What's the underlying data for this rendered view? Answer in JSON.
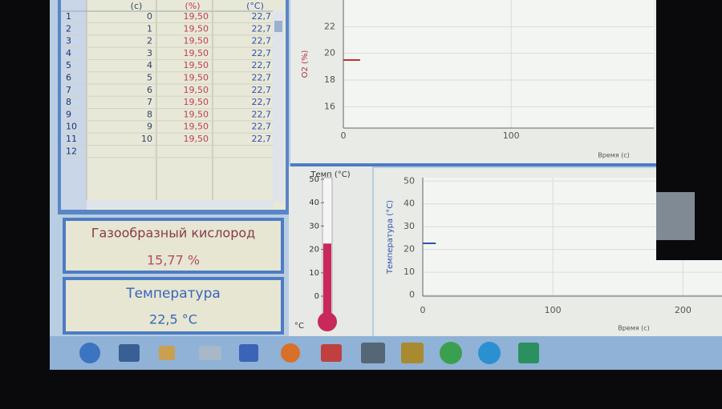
{
  "table": {
    "headers": [
      "(с)",
      "(%)",
      "(°C)"
    ],
    "row_numbers": [
      1,
      2,
      3,
      4,
      5,
      6,
      7,
      8,
      9,
      10,
      11,
      12
    ],
    "rows": [
      [
        0,
        "19,50",
        "22,7"
      ],
      [
        1,
        "19,50",
        "22,7"
      ],
      [
        2,
        "19,50",
        "22,7"
      ],
      [
        3,
        "19,50",
        "22,7"
      ],
      [
        4,
        "19,50",
        "22,7"
      ],
      [
        5,
        "19,50",
        "22,7"
      ],
      [
        6,
        "19,50",
        "22,7"
      ],
      [
        7,
        "19,50",
        "22,7"
      ],
      [
        8,
        "19,50",
        "22,7"
      ],
      [
        9,
        "19,50",
        "22,7"
      ],
      [
        10,
        "19,50",
        "22,7"
      ]
    ]
  },
  "oxygen_panel": {
    "title": "Газообразный кислород",
    "value": "15,77 %"
  },
  "temperature_panel": {
    "title": "Температура",
    "value": "22,5 °C"
  },
  "thermometer": {
    "title": "Темп (°C)",
    "unit": "°C",
    "lim": [
      0,
      50
    ],
    "ticks": [
      0,
      10,
      20,
      30,
      40,
      50
    ],
    "value": 22.5,
    "color": "#c8285a"
  },
  "charts": [
    {
      "type": "line",
      "y_label": "O2 (%)",
      "x_label": "Время (с)",
      "xlim": [
        0,
        185
      ],
      "xticks": [
        0,
        100
      ],
      "ylim": [
        14.4,
        24
      ],
      "yticks": [
        16,
        18,
        20,
        22
      ],
      "series": [
        {
          "color": "#c03030",
          "x": [
            0,
            1,
            2,
            3,
            4,
            5,
            6,
            7,
            8,
            9,
            10
          ],
          "values": [
            19.5,
            19.5,
            19.5,
            19.5,
            19.5,
            19.5,
            19.5,
            19.5,
            19.5,
            19.5,
            19.5
          ]
        }
      ]
    },
    {
      "type": "line",
      "y_label": "Температура (°C)",
      "x_label": "Время (с)",
      "xlim": [
        0,
        230
      ],
      "xticks": [
        0,
        100,
        200
      ],
      "ylim": [
        -0.5,
        51.5
      ],
      "yticks": [
        0,
        10,
        20,
        30,
        40,
        50
      ],
      "series": [
        {
          "color": "#3050b0",
          "x": [
            0,
            1,
            2,
            3,
            4,
            5,
            6,
            7,
            8,
            9,
            10
          ],
          "values": [
            22.7,
            22.7,
            22.7,
            22.7,
            22.7,
            22.7,
            22.7,
            22.7,
            22.7,
            22.7,
            22.7
          ]
        }
      ]
    }
  ]
}
